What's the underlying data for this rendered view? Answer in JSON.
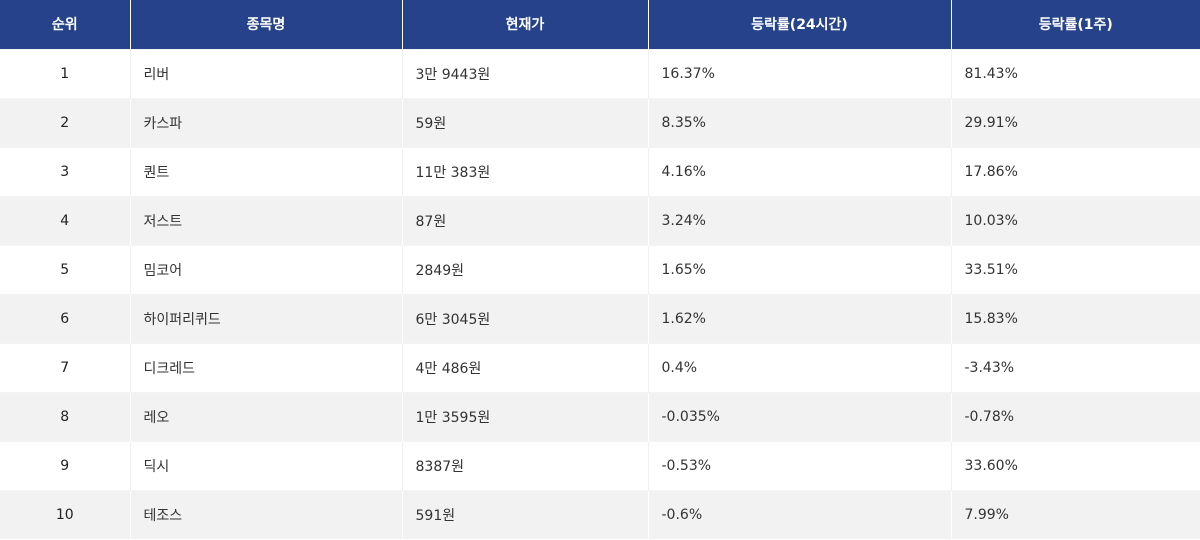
{
  "table": {
    "headers": {
      "rank": "순위",
      "name": "종목명",
      "price": "현재가",
      "change_24h": "등락률(24시간)",
      "change_1w": "등락률(1주)"
    },
    "rows": [
      {
        "rank": "1",
        "name": "리버",
        "price": "3만 9443원",
        "change_24h": "16.37%",
        "change_1w": "81.43%"
      },
      {
        "rank": "2",
        "name": "카스파",
        "price": "59원",
        "change_24h": "8.35%",
        "change_1w": "29.91%"
      },
      {
        "rank": "3",
        "name": "퀀트",
        "price": "11만 383원",
        "change_24h": "4.16%",
        "change_1w": "17.86%"
      },
      {
        "rank": "4",
        "name": "저스트",
        "price": "87원",
        "change_24h": "3.24%",
        "change_1w": "10.03%"
      },
      {
        "rank": "5",
        "name": "밈코어",
        "price": "2849원",
        "change_24h": "1.65%",
        "change_1w": "33.51%"
      },
      {
        "rank": "6",
        "name": "하이퍼리퀴드",
        "price": "6만 3045원",
        "change_24h": "1.62%",
        "change_1w": "15.83%"
      },
      {
        "rank": "7",
        "name": "디크레드",
        "price": "4만 486원",
        "change_24h": "0.4%",
        "change_1w": "-3.43%"
      },
      {
        "rank": "8",
        "name": "레오",
        "price": "1만 3595원",
        "change_24h": "-0.035%",
        "change_1w": "-0.78%"
      },
      {
        "rank": "9",
        "name": "딕시",
        "price": "8387원",
        "change_24h": "-0.53%",
        "change_1w": "33.60%"
      },
      {
        "rank": "10",
        "name": "테조스",
        "price": "591원",
        "change_24h": "-0.6%",
        "change_1w": "7.99%"
      }
    ]
  },
  "colors": {
    "header_bg": "#26428b",
    "header_text": "#ffffff",
    "row_alt_bg": "#f2f2f2",
    "text": "#333333"
  }
}
